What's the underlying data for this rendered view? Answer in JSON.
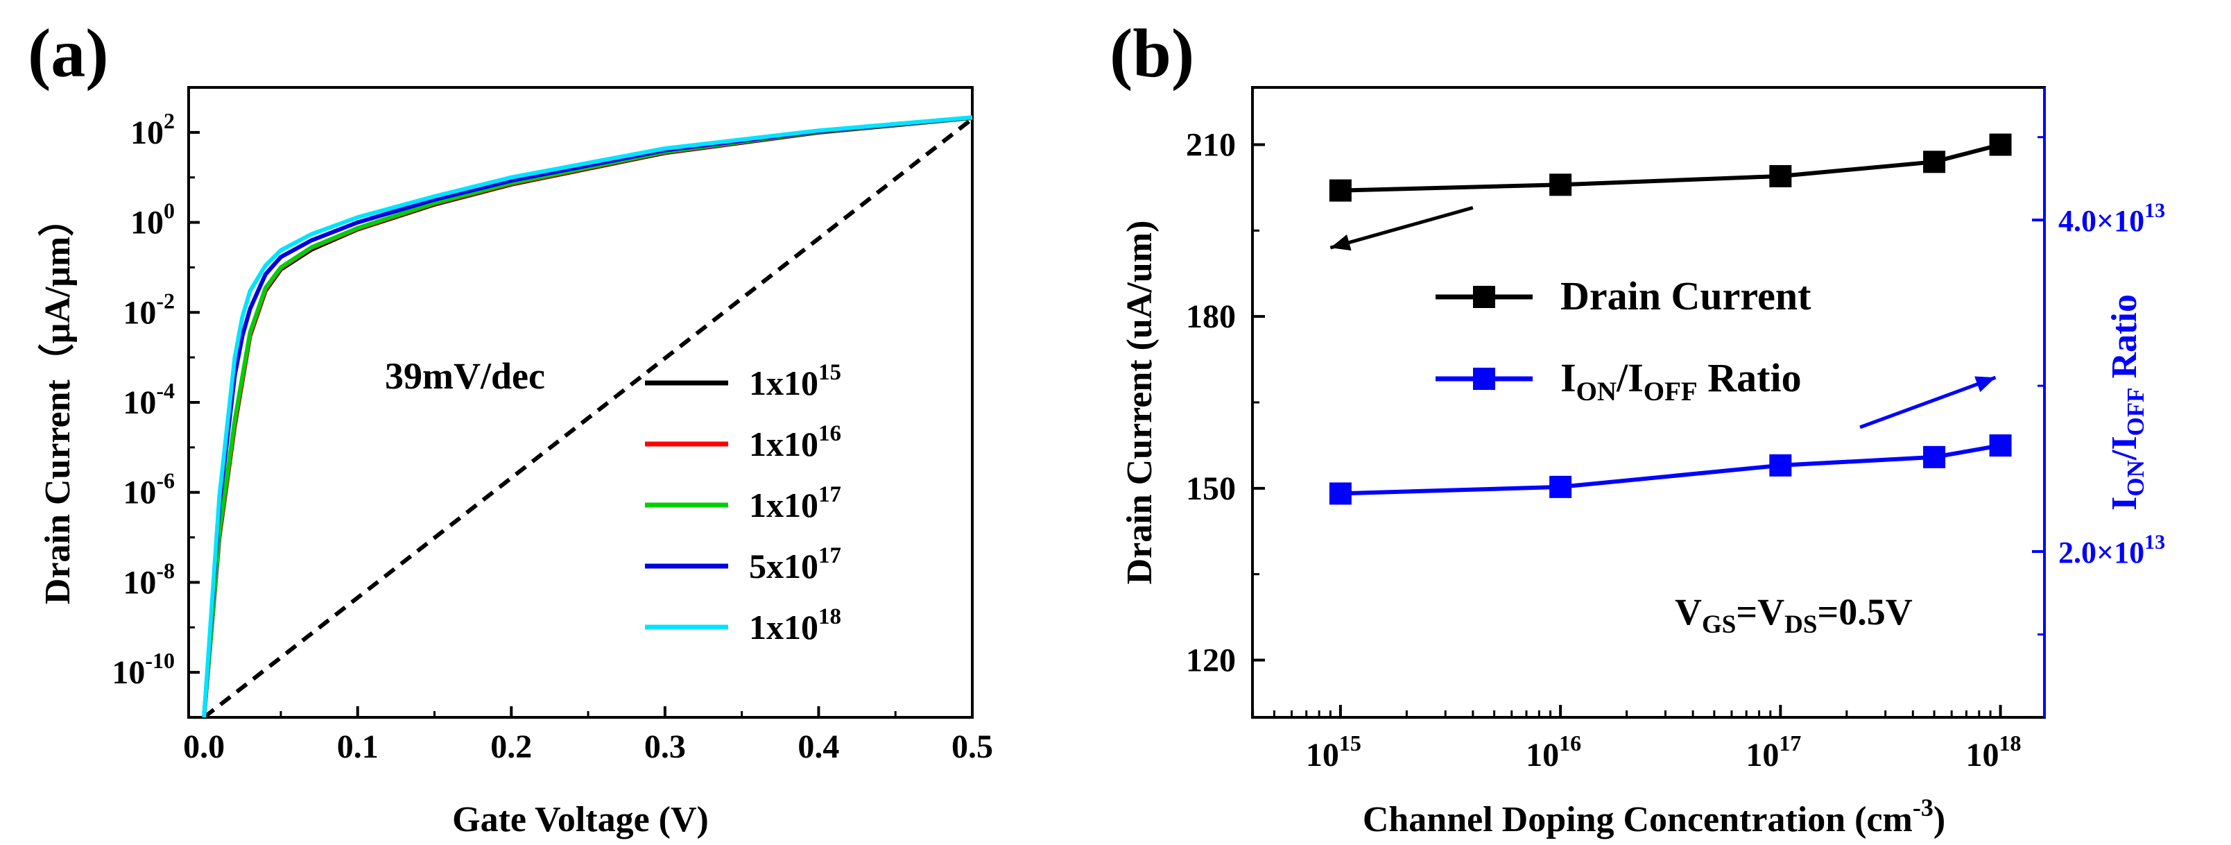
{
  "chart_data": [
    {
      "panel_label": "(a)",
      "type": "line",
      "yscale": "log",
      "xlabel": "Gate Voltage (V)",
      "ylabel": "Drain Current（μA/μm）",
      "xlim": [
        -0.01,
        0.5
      ],
      "ylim": [
        1e-11,
        1000
      ],
      "xticks": [
        0.0,
        0.1,
        0.2,
        0.3,
        0.4,
        0.5
      ],
      "xtick_labels": [
        "0.0",
        "0.1",
        "0.2",
        "0.3",
        "0.4",
        "0.5"
      ],
      "ytick_exponents": [
        -10,
        -8,
        -6,
        -4,
        -2,
        0,
        2
      ],
      "ytick_base": "10",
      "annotation": "39mV/dec",
      "legend_position": "bottom-right",
      "series": [
        {
          "name": "1x10",
          "sup": "15",
          "color": "#000000",
          "x": [
            0,
            0.01,
            0.02,
            0.03,
            0.04,
            0.05,
            0.07,
            0.1,
            0.15,
            0.2,
            0.3,
            0.4,
            0.5
          ],
          "y": [
            1e-11,
            1e-07,
            3e-05,
            0.003,
            0.03,
            0.09,
            0.25,
            0.7,
            2.5,
            7,
            35,
            100,
            210
          ]
        },
        {
          "name": "1x10",
          "sup": "16",
          "color": "#ff0000",
          "x": [
            0,
            0.01,
            0.02,
            0.03,
            0.04,
            0.05,
            0.07,
            0.1,
            0.15,
            0.2,
            0.3,
            0.4,
            0.5
          ],
          "y": [
            1e-11,
            1.1e-07,
            3.3e-05,
            0.0032,
            0.032,
            0.095,
            0.27,
            0.72,
            2.6,
            7.2,
            36,
            102,
            211
          ]
        },
        {
          "name": "1x10",
          "sup": "17",
          "color": "#00d000",
          "x": [
            0,
            0.01,
            0.02,
            0.03,
            0.04,
            0.05,
            0.07,
            0.1,
            0.15,
            0.2,
            0.3,
            0.4,
            0.5
          ],
          "y": [
            1e-11,
            1.3e-07,
            4e-05,
            0.0036,
            0.035,
            0.1,
            0.28,
            0.75,
            2.7,
            7.5,
            37,
            104,
            212
          ]
        },
        {
          "name": "5x10",
          "sup": "17",
          "color": "#0000e0",
          "x": [
            0,
            0.01,
            0.02,
            0.025,
            0.03,
            0.04,
            0.05,
            0.07,
            0.1,
            0.15,
            0.2,
            0.3,
            0.4,
            0.5
          ],
          "y": [
            1e-11,
            5e-07,
            0.0004,
            0.003,
            0.012,
            0.07,
            0.17,
            0.4,
            1.0,
            3.2,
            8.5,
            40,
            106,
            214
          ]
        },
        {
          "name": "1x10",
          "sup": "18",
          "color": "#00e5ff",
          "x": [
            0,
            0.01,
            0.02,
            0.025,
            0.03,
            0.04,
            0.05,
            0.07,
            0.1,
            0.15,
            0.2,
            0.3,
            0.4,
            0.5
          ],
          "y": [
            1e-11,
            8e-07,
            0.001,
            0.008,
            0.03,
            0.11,
            0.24,
            0.55,
            1.3,
            3.8,
            10,
            44,
            110,
            216
          ]
        }
      ],
      "reference_line": {
        "style": "dashed",
        "color": "#000000",
        "x": [
          0.0,
          0.5
        ],
        "y": [
          1e-11,
          200
        ]
      }
    },
    {
      "panel_label": "(b)",
      "type": "line",
      "xscale": "log",
      "xlabel": "Channel Doping Concentration (cm",
      "xlabel_sup": "-3",
      "xlabel_end": ")",
      "ylabel": "Drain Current (uA/um)",
      "y2label_parts": [
        {
          "text": "I",
          "sub": "ON"
        },
        {
          "text": "/I",
          "sub": "OFF"
        },
        {
          "text": " Ratio",
          "sub": ""
        }
      ],
      "xlim_log10": [
        14.6,
        18.2
      ],
      "ylim": [
        110,
        220
      ],
      "y2lim": [
        10000000000000.0,
        48000000000000.0
      ],
      "xticks_exponents": [
        "15",
        "16",
        "17",
        "18"
      ],
      "xtick_base": "10",
      "yticks": [
        120,
        150,
        180,
        210
      ],
      "y2ticks": [
        20000000000000.0,
        40000000000000.0
      ],
      "y2tick_labels": [
        "2.0×10",
        "4.0×10"
      ],
      "y2tick_sup": "13",
      "annotation_parts": [
        {
          "text": "V",
          "sub": "GS"
        },
        {
          "text": "=V",
          "sub": "DS"
        },
        {
          "text": "=0.5V",
          "sub": ""
        }
      ],
      "x": [
        1000000000000000.0,
        1e+16,
        1e+17,
        5e+17,
        1e+18
      ],
      "series": [
        {
          "name": "Drain Current",
          "axis": "left",
          "color": "#000000",
          "values": [
            202,
            203,
            204.5,
            207,
            210
          ]
        },
        {
          "name_parts": [
            {
              "text": "I",
              "sub": "ON"
            },
            {
              "text": "/I",
              "sub": "OFF"
            },
            {
              "text": " Ratio",
              "sub": ""
            }
          ],
          "axis": "right",
          "color": "#0000ff",
          "values": [
            23500000000000.0,
            23900000000000.0,
            25200000000000.0,
            25700000000000.0,
            26400000000000.0
          ]
        }
      ],
      "arrows": [
        {
          "color": "#000000",
          "direction": "left",
          "from": [
            4000000000000000.0,
            199
          ],
          "to": [
            900000000000000.0,
            192
          ]
        },
        {
          "color": "#0000ff",
          "direction": "right",
          "from": [
            2.3e+17,
            27500000000000.0
          ],
          "to": [
            9.5e+17,
            30500000000000.0
          ]
        }
      ]
    }
  ]
}
